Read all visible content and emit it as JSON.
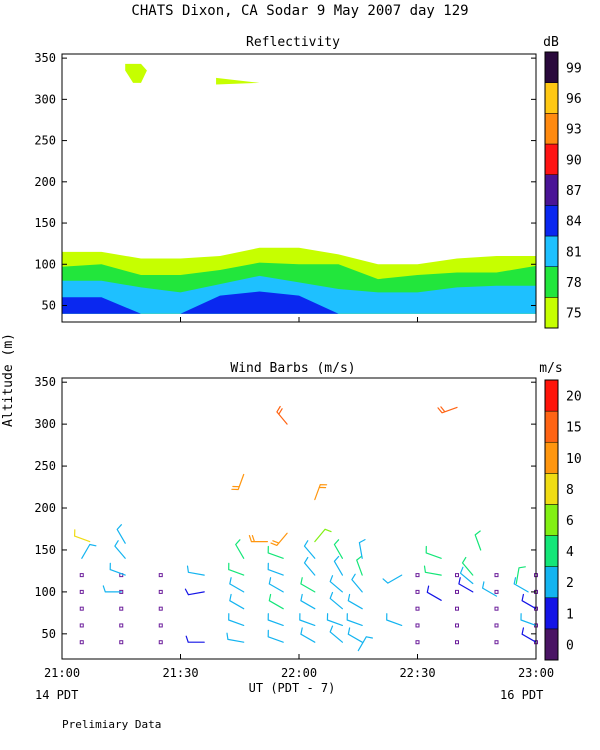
{
  "page": {
    "title": "CHATS Dixon, CA  Sodar   9 May 2007  day 129",
    "y_axis_label": "Altitude (m)",
    "x_axis_label": "UT  (PDT - 7)",
    "left_time_label": "14 PDT",
    "right_time_label": "16 PDT",
    "footer": "Prelimiary Data"
  },
  "chart_data": [
    {
      "type": "area",
      "title": "Reflectivity",
      "colorbar_unit": "dB",
      "colorbar_labels": [
        "75",
        "78",
        "81",
        "84",
        "87",
        "90",
        "93",
        "96",
        "99"
      ],
      "colorbar_colors": [
        "#c6ff00",
        "#22e63c",
        "#1ec0ff",
        "#0a28f0",
        "#4a1496",
        "#ff1414",
        "#ff8a10",
        "#ffc814",
        "#2a0a3c"
      ],
      "ylim": [
        30,
        355
      ],
      "y_ticks": [
        50,
        100,
        150,
        200,
        250,
        300,
        350
      ],
      "x_ticks": [
        0,
        30,
        60,
        90,
        120
      ],
      "x_tick_labels": [
        "21:00",
        "21:30",
        "22:00",
        "22:30",
        "23:00"
      ],
      "x_minutes": [
        0,
        10,
        20,
        30,
        40,
        50,
        60,
        70,
        80,
        90,
        100,
        110,
        120
      ],
      "layers": [
        {
          "name": "75 dB",
          "color": "#c6ff00",
          "top": [
            115,
            115,
            107,
            107,
            110,
            120,
            120,
            112,
            100,
            100,
            107,
            110,
            110
          ]
        },
        {
          "name": "78 dB",
          "color": "#22e63c",
          "top": [
            97,
            100,
            87,
            87,
            93,
            102,
            100,
            100,
            82,
            87,
            90,
            90,
            98
          ]
        },
        {
          "name": "81 dB",
          "color": "#1ec0ff",
          "top": [
            80,
            80,
            72,
            66,
            76,
            86,
            78,
            70,
            66,
            66,
            72,
            74,
            74
          ]
        },
        {
          "name": "84 dB",
          "color": "#0a28f0",
          "top": [
            60,
            60,
            40,
            40,
            62,
            67,
            62,
            40,
            40,
            40,
            40,
            40,
            40
          ]
        }
      ],
      "upper_patches": [
        {
          "name": "patch-1",
          "color": "#c6ff00",
          "points": [
            [
              16,
              343
            ],
            [
              20,
              343
            ],
            [
              21.5,
              335
            ],
            [
              20,
              320
            ],
            [
              18,
              320
            ],
            [
              16,
              335
            ]
          ]
        },
        {
          "name": "patch-2",
          "color": "#c6ff00",
          "points": [
            [
              39,
              326
            ],
            [
              50,
              320
            ],
            [
              39,
              318
            ]
          ]
        }
      ]
    },
    {
      "type": "scatter",
      "title": "Wind Barbs (m/s)",
      "colorbar_unit": "m/s",
      "colorbar_labels": [
        "0",
        "1",
        "2",
        "4",
        "6",
        "8",
        "10",
        "15",
        "20"
      ],
      "colorbar_colors": [
        "#4a1464",
        "#1414e6",
        "#14b4f0",
        "#14e678",
        "#82f014",
        "#f0dc14",
        "#ff960f",
        "#ff6414",
        "#ff140a"
      ],
      "ylim": [
        20,
        355
      ],
      "y_ticks": [
        50,
        100,
        150,
        200,
        250,
        300,
        350
      ],
      "x_ticks": [
        0,
        30,
        60,
        90,
        120
      ],
      "x_tick_labels": [
        "21:00",
        "21:30",
        "22:00",
        "22:30",
        "23:00"
      ],
      "calm_times": [
        5,
        15,
        25,
        90,
        100,
        110,
        120
      ],
      "calm_heights": [
        40,
        60,
        80,
        100,
        120
      ],
      "barbs": [
        {
          "t": 5,
          "h": 140,
          "dir": 30,
          "spd": 3
        },
        {
          "t": 7,
          "h": 160,
          "dir": 290,
          "spd": 9
        },
        {
          "t": 15,
          "h": 100,
          "dir": 270,
          "spd": 3
        },
        {
          "t": 16,
          "h": 120,
          "dir": 290,
          "spd": 3
        },
        {
          "t": 16,
          "h": 140,
          "dir": 320,
          "spd": 3
        },
        {
          "t": 16,
          "h": 158,
          "dir": 330,
          "spd": 3
        },
        {
          "t": 36,
          "h": 40,
          "dir": 270,
          "spd": 1
        },
        {
          "t": 36,
          "h": 100,
          "dir": 260,
          "spd": 1
        },
        {
          "t": 36,
          "h": 120,
          "dir": 280,
          "spd": 3
        },
        {
          "t": 46,
          "h": 40,
          "dir": 280,
          "spd": 3
        },
        {
          "t": 46,
          "h": 60,
          "dir": 290,
          "spd": 3
        },
        {
          "t": 46,
          "h": 80,
          "dir": 300,
          "spd": 3
        },
        {
          "t": 46,
          "h": 100,
          "dir": 300,
          "spd": 3
        },
        {
          "t": 46,
          "h": 120,
          "dir": 290,
          "spd": 4
        },
        {
          "t": 46,
          "h": 140,
          "dir": 330,
          "spd": 4
        },
        {
          "t": 46,
          "h": 240,
          "dir": 200,
          "spd": 13
        },
        {
          "t": 52,
          "h": 160,
          "dir": 270,
          "spd": 10
        },
        {
          "t": 56,
          "h": 40,
          "dir": 290,
          "spd": 3
        },
        {
          "t": 56,
          "h": 60,
          "dir": 290,
          "spd": 3
        },
        {
          "t": 56,
          "h": 80,
          "dir": 300,
          "spd": 4
        },
        {
          "t": 56,
          "h": 100,
          "dir": 300,
          "spd": 3
        },
        {
          "t": 56,
          "h": 120,
          "dir": 290,
          "spd": 3
        },
        {
          "t": 56,
          "h": 140,
          "dir": 290,
          "spd": 4
        },
        {
          "t": 57,
          "h": 170,
          "dir": 220,
          "spd": 10
        },
        {
          "t": 57,
          "h": 300,
          "dir": 320,
          "spd": 15
        },
        {
          "t": 64,
          "h": 40,
          "dir": 300,
          "spd": 2
        },
        {
          "t": 64,
          "h": 60,
          "dir": 290,
          "spd": 2
        },
        {
          "t": 64,
          "h": 80,
          "dir": 300,
          "spd": 2
        },
        {
          "t": 64,
          "h": 100,
          "dir": 300,
          "spd": 4
        },
        {
          "t": 64,
          "h": 120,
          "dir": 320,
          "spd": 3
        },
        {
          "t": 64,
          "h": 140,
          "dir": 320,
          "spd": 3
        },
        {
          "t": 64,
          "h": 160,
          "dir": 40,
          "spd": 6
        },
        {
          "t": 64,
          "h": 210,
          "dir": 20,
          "spd": 10
        },
        {
          "t": 71,
          "h": 40,
          "dir": 310,
          "spd": 2
        },
        {
          "t": 71,
          "h": 60,
          "dir": 290,
          "spd": 3
        },
        {
          "t": 71,
          "h": 80,
          "dir": 310,
          "spd": 2
        },
        {
          "t": 71,
          "h": 100,
          "dir": 310,
          "spd": 2
        },
        {
          "t": 71,
          "h": 120,
          "dir": 330,
          "spd": 3
        },
        {
          "t": 71,
          "h": 140,
          "dir": 330,
          "spd": 4
        },
        {
          "t": 75,
          "h": 30,
          "dir": 30,
          "spd": 2
        },
        {
          "t": 76,
          "h": 40,
          "dir": 300,
          "spd": 2
        },
        {
          "t": 76,
          "h": 60,
          "dir": 290,
          "spd": 3
        },
        {
          "t": 76,
          "h": 80,
          "dir": 300,
          "spd": 2
        },
        {
          "t": 76,
          "h": 100,
          "dir": 320,
          "spd": 3
        },
        {
          "t": 76,
          "h": 120,
          "dir": 340,
          "spd": 4
        },
        {
          "t": 76,
          "h": 140,
          "dir": 350,
          "spd": 3
        },
        {
          "t": 86,
          "h": 60,
          "dir": 290,
          "spd": 2
        },
        {
          "t": 86,
          "h": 120,
          "dir": 240,
          "spd": 3
        },
        {
          "t": 96,
          "h": 90,
          "dir": 300,
          "spd": 1
        },
        {
          "t": 96,
          "h": 120,
          "dir": 280,
          "spd": 4
        },
        {
          "t": 96,
          "h": 140,
          "dir": 290,
          "spd": 4
        },
        {
          "t": 100,
          "h": 320,
          "dir": 250,
          "spd": 15
        },
        {
          "t": 104,
          "h": 100,
          "dir": 300,
          "spd": 1
        },
        {
          "t": 104,
          "h": 110,
          "dir": 310,
          "spd": 3
        },
        {
          "t": 104,
          "h": 120,
          "dir": 320,
          "spd": 4
        },
        {
          "t": 106,
          "h": 150,
          "dir": 340,
          "spd": 5
        },
        {
          "t": 110,
          "h": 95,
          "dir": 300,
          "spd": 3
        },
        {
          "t": 115,
          "h": 110,
          "dir": 10,
          "spd": 5
        },
        {
          "t": 118,
          "h": 100,
          "dir": 300,
          "spd": 2
        },
        {
          "t": 120,
          "h": 40,
          "dir": 300,
          "spd": 1
        },
        {
          "t": 120,
          "h": 60,
          "dir": 290,
          "spd": 2
        },
        {
          "t": 120,
          "h": 80,
          "dir": 300,
          "spd": 1
        }
      ]
    }
  ]
}
